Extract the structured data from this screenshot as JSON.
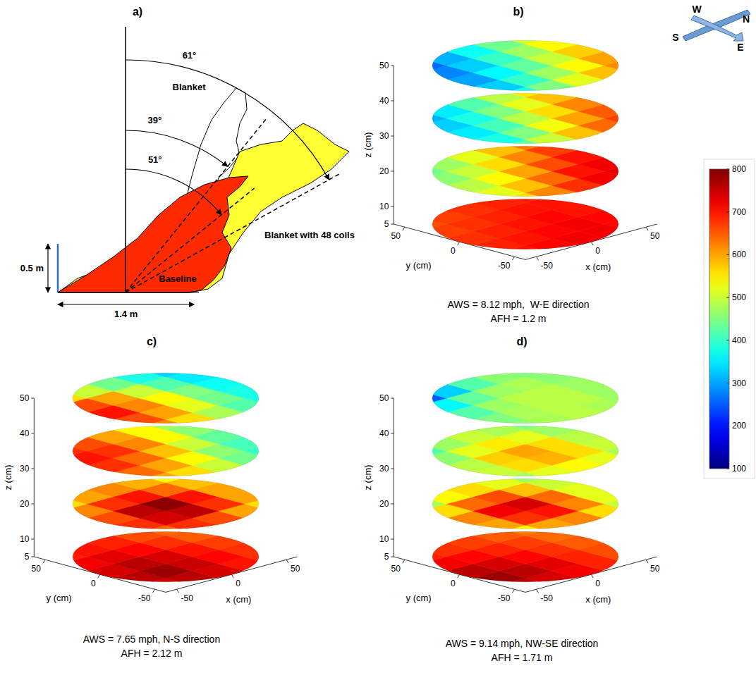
{
  "diagram": {
    "title": "a)",
    "flames": [
      {
        "name": "Blanket",
        "angle": 39,
        "angle_label": "39°"
      },
      {
        "name": "Baseline",
        "angle": 51,
        "angle_label": "51°"
      },
      {
        "name": "Blanket with 48 coils",
        "angle": 61,
        "angle_label": "61°"
      }
    ],
    "height": {
      "value": 0.5,
      "label": "0.5 m"
    },
    "width": {
      "value": 1.4,
      "label": "1.4 m"
    }
  },
  "compass": {
    "labels": [
      "W",
      "N",
      "S",
      "E"
    ]
  },
  "colorbar": {
    "range": [
      100,
      800
    ],
    "ticks": [
      100,
      200,
      300,
      400,
      500,
      600,
      700,
      800
    ]
  },
  "chart_data": [
    {
      "type": "contour3d",
      "title": "b)",
      "x_label": "x (cm)",
      "y_label": "y (cm)",
      "z_label": "z (cm)",
      "xlim": [
        -60,
        60
      ],
      "ylim": [
        -60,
        60
      ],
      "zlim": [
        5,
        50
      ],
      "xticks": [
        -50,
        0,
        50
      ],
      "yticks": [
        -50,
        0,
        50
      ],
      "zticks": [
        5,
        10,
        20,
        30,
        40,
        50
      ],
      "grid_x": [
        -48,
        -24,
        0,
        24,
        48
      ],
      "grid_y": [
        -48,
        -24,
        0,
        24,
        48
      ],
      "slices": [
        {
          "z": 5,
          "values": [
            [
              700,
              710,
              720,
              720,
              710
            ],
            [
              690,
              700,
              710,
              720,
              710
            ],
            [
              680,
              690,
              700,
              710,
              700
            ],
            [
              670,
              680,
              690,
              700,
              700
            ],
            [
              660,
              670,
              680,
              690,
              690
            ]
          ]
        },
        {
          "z": 20,
          "values": [
            [
              560,
              620,
              680,
              720,
              730
            ],
            [
              520,
              580,
              640,
              700,
              720
            ],
            [
              490,
              540,
              600,
              660,
              700
            ],
            [
              460,
              500,
              560,
              620,
              670
            ],
            [
              440,
              470,
              520,
              580,
              630
            ]
          ]
        },
        {
          "z": 35,
          "values": [
            [
              430,
              500,
              580,
              640,
              670
            ],
            [
              380,
              450,
              530,
              600,
              650
            ],
            [
              350,
              410,
              490,
              560,
              620
            ],
            [
              330,
              380,
              450,
              520,
              580
            ],
            [
              310,
              350,
              420,
              490,
              550
            ]
          ]
        },
        {
          "z": 50,
          "values": [
            [
              380,
              450,
              520,
              580,
              620
            ],
            [
              330,
              400,
              470,
              540,
              600
            ],
            [
              300,
              360,
              430,
              500,
              570
            ],
            [
              280,
              330,
              400,
              470,
              540
            ],
            [
              260,
              310,
              370,
              440,
              510
            ]
          ]
        }
      ],
      "caption": [
        "AWS = 8.12 mph,  W-E direction",
        "AFH = 1.2 m"
      ]
    },
    {
      "type": "contour3d",
      "title": "c)",
      "x_label": "x (cm)",
      "y_label": "y (cm)",
      "z_label": "z (cm)",
      "xlim": [
        -60,
        60
      ],
      "ylim": [
        -60,
        60
      ],
      "zlim": [
        5,
        50
      ],
      "xticks": [
        -50,
        0,
        50
      ],
      "yticks": [
        -50,
        0,
        50
      ],
      "zticks": [
        5,
        10,
        20,
        30,
        40,
        50
      ],
      "grid_x": [
        -48,
        -24,
        0,
        24,
        48
      ],
      "grid_y": [
        -48,
        -24,
        0,
        24,
        48
      ],
      "slices": [
        {
          "z": 5,
          "values": [
            [
              740,
              760,
              740,
              700,
              680
            ],
            [
              760,
              780,
              750,
              710,
              680
            ],
            [
              740,
              760,
              740,
              700,
              670
            ],
            [
              720,
              730,
              710,
              680,
              650
            ],
            [
              690,
              700,
              690,
              660,
              640
            ]
          ]
        },
        {
          "z": 20,
          "values": [
            [
              640,
              680,
              660,
              600,
              560
            ],
            [
              680,
              740,
              760,
              680,
              600
            ],
            [
              660,
              760,
              790,
              700,
              600
            ],
            [
              620,
              680,
              700,
              640,
              580
            ],
            [
              560,
              600,
              620,
              590,
              540
            ]
          ]
        },
        {
          "z": 35,
          "values": [
            [
              600,
              560,
              500,
              440,
              400
            ],
            [
              640,
              600,
              540,
              460,
              410
            ],
            [
              680,
              640,
              580,
              500,
              430
            ],
            [
              700,
              680,
              620,
              540,
              460
            ],
            [
              680,
              660,
              600,
              540,
              480
            ]
          ]
        },
        {
          "z": 50,
          "values": [
            [
              620,
              560,
              480,
              420,
              380
            ],
            [
              660,
              600,
              520,
              440,
              380
            ],
            [
              700,
              620,
              540,
              450,
              370
            ],
            [
              660,
              600,
              500,
              420,
              350
            ],
            [
              560,
              500,
              440,
              380,
              330
            ]
          ]
        }
      ],
      "caption": [
        "AWS = 7.65 mph, N-S direction",
        "AFH = 2.12 m"
      ]
    },
    {
      "type": "contour3d",
      "title": "d)",
      "x_label": "x (cm)",
      "y_label": "y (cm)",
      "z_label": "z (cm)",
      "xlim": [
        -60,
        60
      ],
      "ylim": [
        -60,
        60
      ],
      "zlim": [
        5,
        50
      ],
      "xticks": [
        -50,
        0,
        50
      ],
      "yticks": [
        -50,
        0,
        50
      ],
      "zticks": [
        5,
        10,
        20,
        30,
        40,
        50
      ],
      "grid_x": [
        -48,
        -24,
        0,
        24,
        48
      ],
      "grid_y": [
        -48,
        -24,
        0,
        24,
        48
      ],
      "slices": [
        {
          "z": 5,
          "values": [
            [
              760,
              740,
              720,
              690,
              660
            ],
            [
              780,
              760,
              730,
              690,
              660
            ],
            [
              760,
              740,
              710,
              680,
              650
            ],
            [
              720,
              710,
              690,
              670,
              640
            ],
            [
              690,
              680,
              670,
              650,
              630
            ]
          ]
        },
        {
          "z": 20,
          "values": [
            [
              540,
              600,
              620,
              560,
              500
            ],
            [
              600,
              680,
              700,
              620,
              520
            ],
            [
              620,
              720,
              740,
              640,
              520
            ],
            [
              560,
              640,
              660,
              580,
              500
            ],
            [
              480,
              540,
              560,
              520,
              470
            ]
          ]
        },
        {
          "z": 35,
          "values": [
            [
              470,
              520,
              540,
              520,
              480
            ],
            [
              500,
              560,
              590,
              560,
              500
            ],
            [
              490,
              570,
              600,
              560,
              490
            ],
            [
              460,
              520,
              550,
              520,
              470
            ],
            [
              420,
              470,
              500,
              480,
              450
            ]
          ]
        },
        {
          "z": 50,
          "values": [
            [
              460,
              480,
              490,
              480,
              470
            ],
            [
              450,
              480,
              490,
              490,
              470
            ],
            [
              420,
              470,
              490,
              490,
              470
            ],
            [
              360,
              430,
              470,
              480,
              460
            ],
            [
              250,
              330,
              420,
              460,
              450
            ]
          ]
        }
      ],
      "caption": [
        "AWS = 9.14 mph, NW-SE direction",
        "AFH = 1.71 m"
      ]
    }
  ]
}
